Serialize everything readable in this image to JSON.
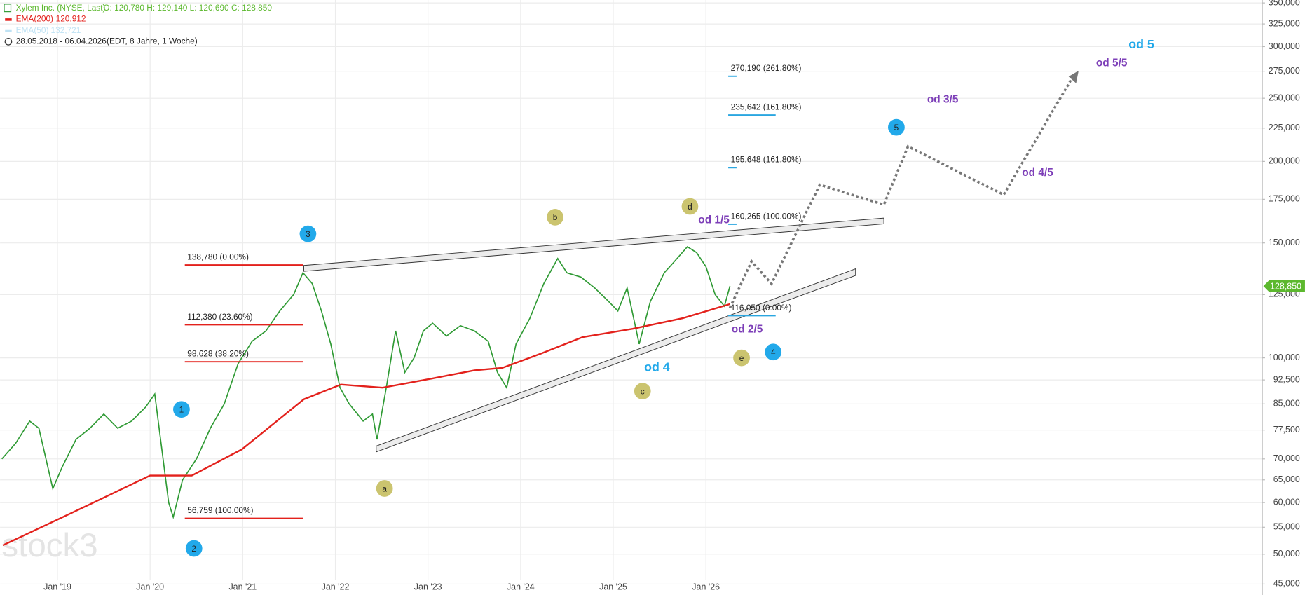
{
  "chart_data": {
    "type": "line",
    "title": "Xylem Inc. (NYSE, Last)",
    "subtitle": "O: 120,780  H: 129,140  L: 120,690  C: 128,850",
    "period": "28.05.2018 - 06.04.2026",
    "period_note": "(EDT, 8 Jahre, 1 Woche)",
    "watermark": "stock3",
    "log_scale": true,
    "grid": true,
    "xlim": [
      2018.38,
      2032.0
    ],
    "xticks": [
      {
        "value": 2019,
        "label": "Jan '19"
      },
      {
        "value": 2020,
        "label": "Jan '20"
      },
      {
        "value": 2021,
        "label": "Jan '21"
      },
      {
        "value": 2022,
        "label": "Jan '22"
      },
      {
        "value": 2023,
        "label": "Jan '23"
      },
      {
        "value": 2024,
        "label": "Jan '24"
      },
      {
        "value": 2025,
        "label": "Jan '25"
      },
      {
        "value": 2026,
        "label": "Jan '26"
      }
    ],
    "ylim": [
      43.3,
      353.6
    ],
    "yticks": [
      {
        "value": 45,
        "label": "45,000"
      },
      {
        "value": 50,
        "label": "50,000"
      },
      {
        "value": 55,
        "label": "55,000"
      },
      {
        "value": 60,
        "label": "60,000"
      },
      {
        "value": 65,
        "label": "65,000"
      },
      {
        "value": 70,
        "label": "70,000"
      },
      {
        "value": 77.5,
        "label": "77,500"
      },
      {
        "value": 85,
        "label": "85,000"
      },
      {
        "value": 92.5,
        "label": "92,500"
      },
      {
        "value": 100,
        "label": "100,000"
      },
      {
        "value": 125,
        "label": "125,000"
      },
      {
        "value": 150,
        "label": "150,000"
      },
      {
        "value": 175,
        "label": "175,000"
      },
      {
        "value": 200,
        "label": "200,000"
      },
      {
        "value": 225,
        "label": "225,000"
      },
      {
        "value": 250,
        "label": "250,000"
      },
      {
        "value": 275,
        "label": "275,000"
      },
      {
        "value": 300,
        "label": "300,000"
      },
      {
        "value": 325,
        "label": "325,000"
      },
      {
        "value": 350,
        "label": "350,000"
      }
    ],
    "series": [
      {
        "color": "#2f9a34",
        "x": [
          2018.4,
          2018.55,
          2018.7,
          2018.8,
          2018.95,
          2019.05,
          2019.2,
          2019.35,
          2019.5,
          2019.65,
          2019.8,
          2019.95,
          2020.05,
          2020.2,
          2020.25,
          2020.35,
          2020.5,
          2020.65,
          2020.8,
          2020.95,
          2021.1,
          2021.25,
          2021.4,
          2021.55,
          2021.65,
          2021.75,
          2021.85,
          2021.95,
          2022.05,
          2022.15,
          2022.3,
          2022.4,
          2022.45,
          2022.55,
          2022.65,
          2022.75,
          2022.85,
          2022.95,
          2023.05,
          2023.2,
          2023.35,
          2023.5,
          2023.65,
          2023.75,
          2023.85,
          2023.95,
          2024.1,
          2024.25,
          2024.4,
          2024.5,
          2024.65,
          2024.8,
          2024.95,
          2025.05,
          2025.15,
          2025.28,
          2025.4,
          2025.55,
          2025.65,
          2025.8,
          2025.9,
          2026.0,
          2026.1,
          2026.2,
          2026.26
        ],
        "values": [
          70,
          74,
          80,
          78,
          63,
          68,
          75,
          78,
          82,
          78,
          80,
          84,
          88,
          60,
          57,
          65,
          70,
          78,
          85,
          98,
          106,
          110,
          118,
          125,
          135,
          130,
          118,
          105,
          90,
          85,
          80,
          82,
          75,
          90,
          110,
          95,
          100,
          110,
          113,
          108,
          112,
          110,
          106,
          95,
          90,
          105,
          115,
          130,
          142,
          135,
          133,
          128,
          122,
          118,
          128,
          105,
          122,
          135,
          140,
          148,
          145,
          138,
          125,
          120,
          128.85
        ]
      },
      {
        "name": "EMA(200)",
        "value_label": "120,912",
        "color": "#e3211c",
        "x": [
          2018.41,
          2019.28,
          2020.0,
          2020.45,
          2020.99,
          2021.66,
          2022.06,
          2022.51,
          2023.05,
          2023.5,
          2023.8,
          2024.22,
          2024.67,
          2025.21,
          2025.75,
          2026.26
        ],
        "values": [
          51.6,
          59,
          66,
          66,
          72.4,
          86.4,
          91,
          90,
          93,
          95.7,
          96.5,
          101.5,
          107.6,
          110.8,
          115,
          120.9
        ]
      }
    ],
    "hidden_indicator": {
      "name": "EMA(50)",
      "value_label": "132,721",
      "color": "#bfe2f4"
    },
    "last_price": {
      "value": 128.85,
      "label": "128,850",
      "color": "#5cb82e"
    },
    "fib_levels": [
      {
        "value": 138.78,
        "label": "138,780 (0.00%)"
      },
      {
        "value": 112.38,
        "label": "112,380 (23.60%)"
      },
      {
        "value": 98.628,
        "label": "98,628 (38.20%)"
      },
      {
        "value": 56.759,
        "label": "56,759 (100.00%)"
      }
    ],
    "fib_color": "#e3211c",
    "targets": [
      {
        "value": 270.19,
        "label": "270,190 (261.80%)"
      },
      {
        "value": 235.642,
        "label": "235,642 (161.80%)"
      },
      {
        "value": 195.648,
        "label": "195,648 (161.80%)"
      },
      {
        "value": 160.265,
        "label": "160,265 (100.00%)"
      },
      {
        "value": 116.05,
        "label": "116,050 (0.00%)"
      }
    ],
    "target_color": "#2aa6e0",
    "waves": [
      {
        "label": "1",
        "color": "#22a9ea"
      },
      {
        "label": "2",
        "color": "#22a9ea"
      },
      {
        "label": "3",
        "color": "#22a9ea"
      },
      {
        "label": "4",
        "color": "#22a9ea"
      },
      {
        "label": "5",
        "color": "#22a9ea"
      },
      {
        "label": "a",
        "color": "#cbc46f"
      },
      {
        "label": "b",
        "color": "#cbc46f"
      },
      {
        "label": "c",
        "color": "#cbc46f"
      },
      {
        "label": "d",
        "color": "#cbc46f"
      },
      {
        "label": "e",
        "color": "#cbc46f"
      }
    ],
    "annotations": [
      {
        "text": "od 1/5",
        "color": "#7d3fb8"
      },
      {
        "text": "od 2/5",
        "color": "#7d3fb8"
      },
      {
        "text": "od 3/5",
        "color": "#7d3fb8"
      },
      {
        "text": "od 4/5",
        "color": "#7d3fb8"
      },
      {
        "text": "od 5/5",
        "color": "#7d3fb8"
      },
      {
        "text": "od 4",
        "color": "#22a9ea"
      },
      {
        "text": "od 5",
        "color": "#22a9ea"
      }
    ]
  }
}
